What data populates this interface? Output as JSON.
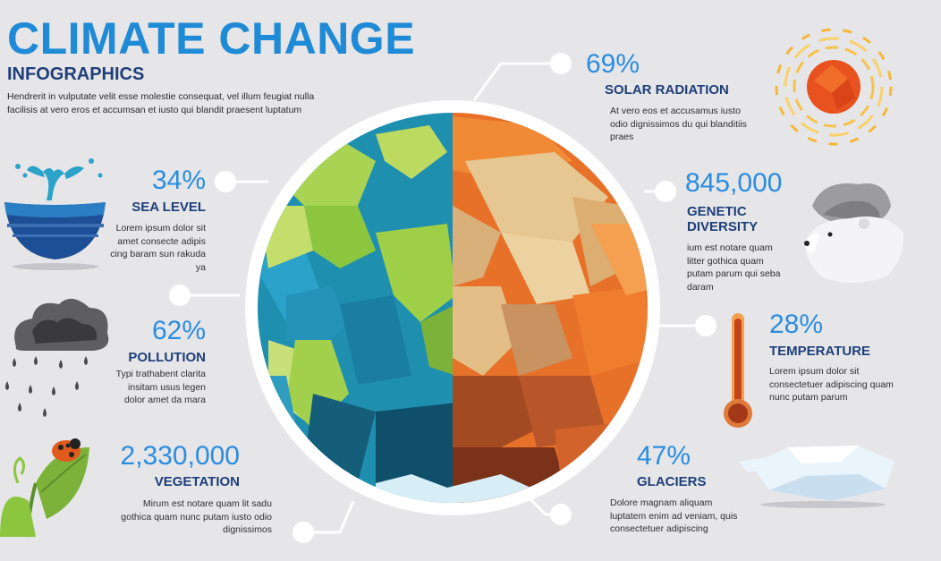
{
  "header": {
    "title": "CLIMATE CHANGE",
    "subtitle": "INFOGRAPHICS",
    "intro": "Hendrerit in vulputate velit esse molestie consequat, vel illum feugiat nulla facilisis at vero eros et accumsan et iusto qui blandit praesent luptatum"
  },
  "left": [
    {
      "stat": "34%",
      "heading": "SEA LEVEL",
      "text": "Lorem ipsum dolor sit amet consecte adipis cing baram sun rakuda ya"
    },
    {
      "stat": "62%",
      "heading": "POLLUTION",
      "text": "Typi trathabent clarita insitam usus legen dolor amet da mara"
    },
    {
      "stat": "2,330,000",
      "heading": "VEGETATION",
      "text": "Mirum est notare quam lit sadu gothica quam nunc putam iusto odio dignissimos"
    }
  ],
  "right": [
    {
      "stat": "69%",
      "heading": "SOLAR RADIATION",
      "text": "At vero eos et accusamus iusto odio dignissimos du qui blanditiis praes"
    },
    {
      "stat": "845,000",
      "heading": "GENETIC DIVERSITY",
      "text": "ium est notare quam litter gothica quam putam parum qui seba  daram"
    },
    {
      "stat": "28%",
      "heading": "TEMPERATURE",
      "text": "Lorem ipsum dolor sit consectetuer adipiscing quam nunc putam parum"
    },
    {
      "stat": "47%",
      "heading": "GLACIERS",
      "text": "Dolore magnam aliquam luptatem enim ad veniam, quis consectetuer adipiscing"
    }
  ],
  "colors": {
    "title": "#1f8ad6",
    "heading": "#1e3f7a",
    "stat": "#2a8de0",
    "ocean": "#1f8fb0",
    "land_green": "#9fcf46",
    "hot_side": "#e8712a",
    "sand": "#e6c791",
    "background": "#e6e6e8"
  },
  "icons": [
    "whale-icon",
    "storm-cloud-icon",
    "leaf-ladybug-icon",
    "sun-icon",
    "polar-bear-icon",
    "thermometer-icon",
    "iceberg-icon"
  ]
}
